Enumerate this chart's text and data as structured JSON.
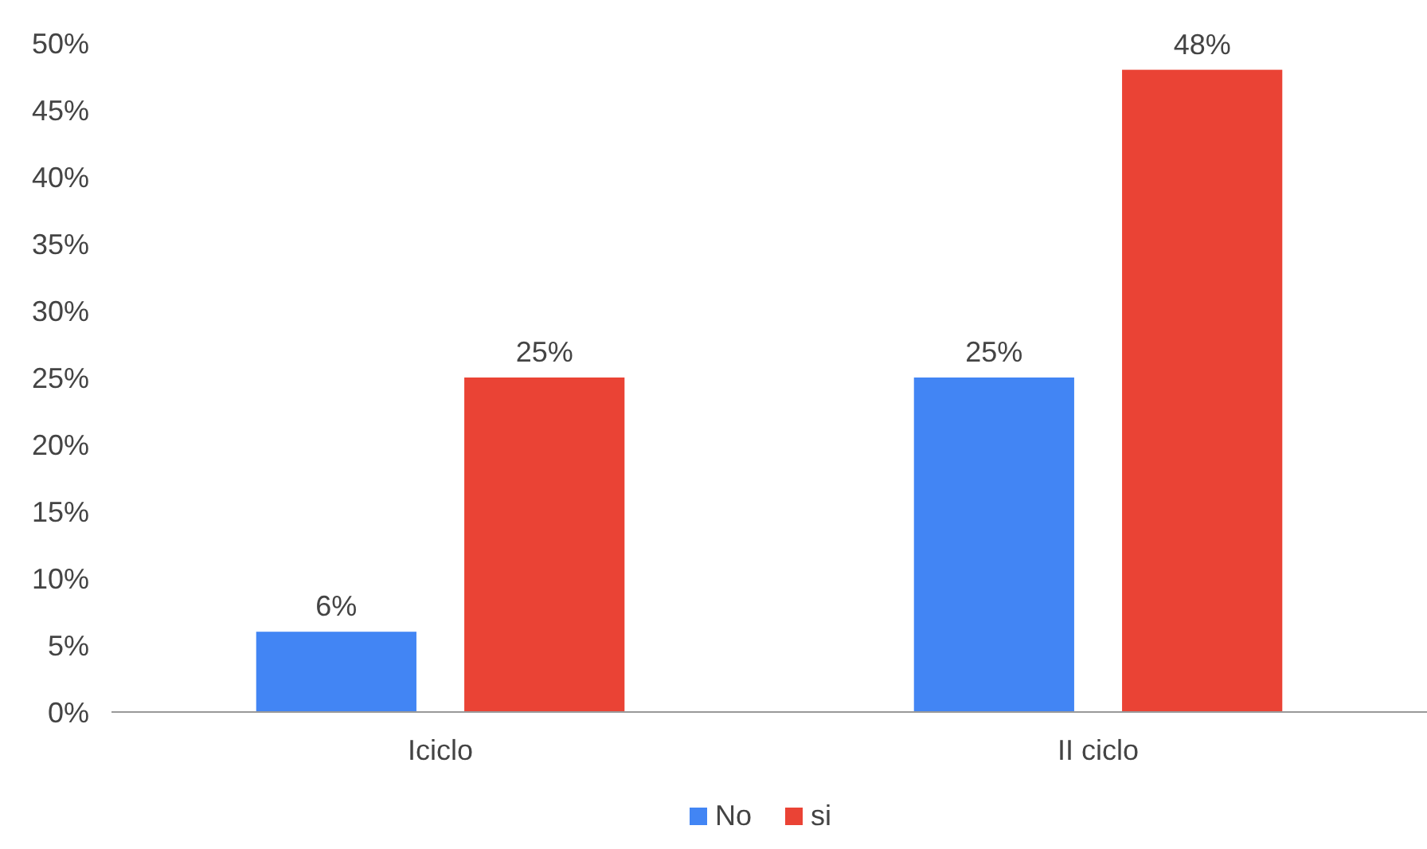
{
  "chart_data": {
    "type": "bar",
    "categories": [
      "Iciclo",
      "II ciclo"
    ],
    "series": [
      {
        "name": "No",
        "color": "#4285f4",
        "values": [
          6,
          25
        ],
        "value_labels": [
          "6%",
          "25%"
        ]
      },
      {
        "name": "si",
        "color": "#ea4335",
        "values": [
          25,
          48
        ],
        "value_labels": [
          "25%",
          "48%"
        ]
      }
    ],
    "ylim": [
      0,
      50
    ],
    "yticks": [
      {
        "value": 0,
        "label": "0%"
      },
      {
        "value": 5,
        "label": "5%"
      },
      {
        "value": 10,
        "label": "10%"
      },
      {
        "value": 15,
        "label": "15%"
      },
      {
        "value": 20,
        "label": "20%"
      },
      {
        "value": 25,
        "label": "25%"
      },
      {
        "value": 30,
        "label": "30%"
      },
      {
        "value": 35,
        "label": "35%"
      },
      {
        "value": 40,
        "label": "40%"
      },
      {
        "value": 45,
        "label": "45%"
      },
      {
        "value": 50,
        "label": "50%"
      }
    ],
    "grid": false,
    "legend": "bottom"
  }
}
